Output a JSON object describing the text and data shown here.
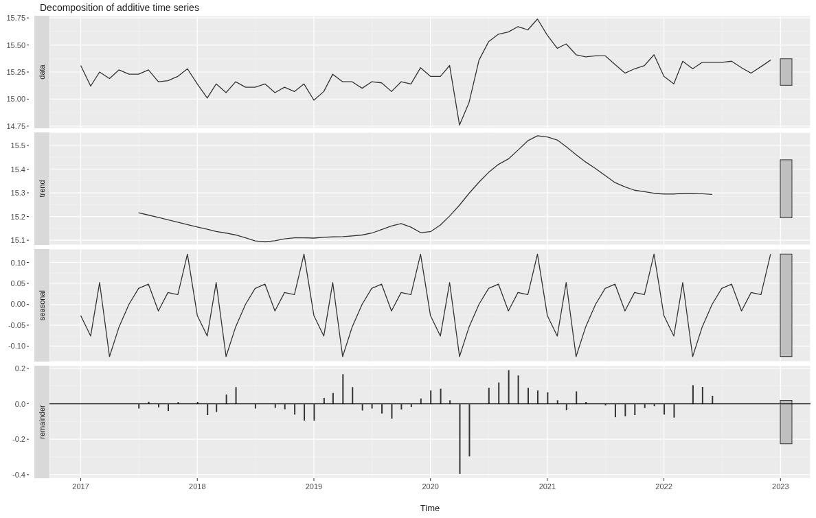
{
  "chart_data": [
    {
      "type": "line",
      "title": "Decomposition of additive time series",
      "ylabel": "data",
      "grid": true,
      "tick_labels": "y",
      "x": [
        "2017-01",
        "2017-02",
        "2017-03",
        "2017-04",
        "2017-05",
        "2017-06",
        "2017-07",
        "2017-08",
        "2017-09",
        "2017-10",
        "2017-11",
        "2017-12",
        "2018-01",
        "2018-02",
        "2018-03",
        "2018-04",
        "2018-05",
        "2018-06",
        "2018-07",
        "2018-08",
        "2018-09",
        "2018-10",
        "2018-11",
        "2018-12",
        "2019-01",
        "2019-02",
        "2019-03",
        "2019-04",
        "2019-05",
        "2019-06",
        "2019-07",
        "2019-08",
        "2019-09",
        "2019-10",
        "2019-11",
        "2019-12",
        "2020-01",
        "2020-02",
        "2020-03",
        "2020-04",
        "2020-05",
        "2020-06",
        "2020-07",
        "2020-08",
        "2020-09",
        "2020-10",
        "2020-11",
        "2020-12",
        "2021-01",
        "2021-02",
        "2021-03",
        "2021-04",
        "2021-05",
        "2021-06",
        "2021-07",
        "2021-08",
        "2021-09",
        "2021-10",
        "2021-11",
        "2021-12",
        "2022-01",
        "2022-02",
        "2022-03",
        "2022-04",
        "2022-05",
        "2022-06",
        "2022-07",
        "2022-08",
        "2022-09",
        "2022-10",
        "2022-11",
        "2022-12"
      ],
      "series": [
        {
          "color": "#333333",
          "values": [
            15.31,
            15.12,
            15.25,
            15.19,
            15.27,
            15.23,
            15.23,
            15.27,
            15.16,
            15.17,
            15.21,
            15.28,
            15.14,
            15.01,
            15.14,
            15.06,
            15.16,
            15.11,
            15.11,
            15.14,
            15.06,
            15.11,
            15.07,
            15.14,
            14.99,
            15.07,
            15.23,
            15.16,
            15.16,
            15.1,
            15.16,
            15.15,
            15.07,
            15.16,
            15.14,
            15.29,
            15.21,
            15.21,
            15.31,
            14.76,
            14.97,
            15.36,
            15.53,
            15.6,
            15.62,
            15.67,
            15.64,
            15.74,
            15.59,
            15.47,
            15.51,
            15.41,
            15.39,
            15.4,
            15.4,
            15.32,
            15.24,
            15.28,
            15.31,
            15.41,
            15.21,
            15.14,
            15.35,
            15.28,
            15.34,
            15.34,
            15.34,
            15.35,
            15.29,
            15.24,
            15.3,
            15.36
          ]
        }
      ],
      "xlim": [
        "2016-09-25",
        "2023-04-05"
      ],
      "xticks": [
        "2017",
        "2018",
        "2019",
        "2020",
        "2021",
        "2022",
        "2023"
      ],
      "ylim": [
        14.73,
        15.77
      ],
      "yticks": [
        {
          "value": 14.75,
          "label": "14.75"
        },
        {
          "value": 15,
          "label": "15.00"
        },
        {
          "value": 15.25,
          "label": "15.25"
        },
        {
          "value": 15.5,
          "label": "15.50"
        },
        {
          "value": 15.75,
          "label": "15.75"
        }
      ]
    },
    {
      "type": "line",
      "ylabel": "trend",
      "grid": true,
      "tick_labels": "y",
      "x": [
        "2017-07",
        "2017-08",
        "2017-09",
        "2017-10",
        "2017-11",
        "2017-12",
        "2018-01",
        "2018-02",
        "2018-03",
        "2018-04",
        "2018-05",
        "2018-06",
        "2018-07",
        "2018-08",
        "2018-09",
        "2018-10",
        "2018-11",
        "2018-12",
        "2019-01",
        "2019-02",
        "2019-03",
        "2019-04",
        "2019-05",
        "2019-06",
        "2019-07",
        "2019-08",
        "2019-09",
        "2019-10",
        "2019-11",
        "2019-12",
        "2020-01",
        "2020-02",
        "2020-03",
        "2020-04",
        "2020-05",
        "2020-06",
        "2020-07",
        "2020-08",
        "2020-09",
        "2020-10",
        "2020-11",
        "2020-12",
        "2021-01",
        "2021-02",
        "2021-03",
        "2021-04",
        "2021-05",
        "2021-06",
        "2021-07",
        "2021-08",
        "2021-09",
        "2021-10",
        "2021-11",
        "2021-12",
        "2022-01",
        "2022-02",
        "2022-03",
        "2022-04",
        "2022-05",
        "2022-06"
      ],
      "series": [
        {
          "color": "#333333",
          "values": [
            15.216,
            15.206,
            15.196,
            15.186,
            15.176,
            15.166,
            15.156,
            15.146,
            15.137,
            15.13,
            15.122,
            15.11,
            15.097,
            15.093,
            15.098,
            15.106,
            15.11,
            15.11,
            15.109,
            15.112,
            15.114,
            15.115,
            15.118,
            15.122,
            15.13,
            15.145,
            15.16,
            15.17,
            15.155,
            15.132,
            15.136,
            15.164,
            15.202,
            15.248,
            15.298,
            15.345,
            15.386,
            15.42,
            15.443,
            15.48,
            15.52,
            15.541,
            15.536,
            15.523,
            15.495,
            15.461,
            15.43,
            15.402,
            15.373,
            15.343,
            15.325,
            15.311,
            15.305,
            15.298,
            15.295,
            15.295,
            15.298,
            15.298,
            15.296,
            15.293
          ]
        }
      ],
      "xlim": [
        "2016-09-25",
        "2023-04-05"
      ],
      "xticks": [
        "2017",
        "2018",
        "2019",
        "2020",
        "2021",
        "2022",
        "2023"
      ],
      "ylim": [
        15.08,
        15.555
      ],
      "yticks": [
        15.1,
        15.2,
        15.3,
        15.4,
        15.5
      ]
    },
    {
      "type": "line",
      "ylabel": "seasonal",
      "grid": true,
      "tick_labels": "y",
      "x": [
        "2017-01",
        "2017-02",
        "2017-03",
        "2017-04",
        "2017-05",
        "2017-06",
        "2017-07",
        "2017-08",
        "2017-09",
        "2017-10",
        "2017-11",
        "2017-12",
        "2018-01",
        "2018-02",
        "2018-03",
        "2018-04",
        "2018-05",
        "2018-06",
        "2018-07",
        "2018-08",
        "2018-09",
        "2018-10",
        "2018-11",
        "2018-12",
        "2019-01",
        "2019-02",
        "2019-03",
        "2019-04",
        "2019-05",
        "2019-06",
        "2019-07",
        "2019-08",
        "2019-09",
        "2019-10",
        "2019-11",
        "2019-12",
        "2020-01",
        "2020-02",
        "2020-03",
        "2020-04",
        "2020-05",
        "2020-06",
        "2020-07",
        "2020-08",
        "2020-09",
        "2020-10",
        "2020-11",
        "2020-12",
        "2021-01",
        "2021-02",
        "2021-03",
        "2021-04",
        "2021-05",
        "2021-06",
        "2021-07",
        "2021-08",
        "2021-09",
        "2021-10",
        "2021-11",
        "2021-12",
        "2022-01",
        "2022-02",
        "2022-03",
        "2022-04",
        "2022-05",
        "2022-06",
        "2022-07",
        "2022-08",
        "2022-09",
        "2022-10",
        "2022-11",
        "2022-12"
      ],
      "series": [
        {
          "color": "#333333",
          "values": [
            -0.027,
            -0.076,
            0.052,
            -0.125,
            -0.054,
            0.0,
            0.038,
            0.048,
            -0.016,
            0.028,
            0.023,
            0.12,
            -0.027,
            -0.076,
            0.052,
            -0.125,
            -0.054,
            0.0,
            0.038,
            0.048,
            -0.016,
            0.028,
            0.023,
            0.12,
            -0.027,
            -0.076,
            0.052,
            -0.125,
            -0.054,
            0.0,
            0.038,
            0.048,
            -0.016,
            0.028,
            0.023,
            0.12,
            -0.027,
            -0.076,
            0.052,
            -0.125,
            -0.054,
            0.0,
            0.038,
            0.048,
            -0.016,
            0.028,
            0.023,
            0.12,
            -0.027,
            -0.076,
            0.052,
            -0.125,
            -0.054,
            0.0,
            0.038,
            0.048,
            -0.016,
            0.028,
            0.023,
            0.12,
            -0.027,
            -0.076,
            0.052,
            -0.125,
            -0.054,
            0.0,
            0.038,
            0.048,
            -0.016,
            0.028,
            0.023,
            0.12
          ]
        }
      ],
      "xlim": [
        "2016-09-25",
        "2023-04-05"
      ],
      "xticks": [
        "2017",
        "2018",
        "2019",
        "2020",
        "2021",
        "2022",
        "2023"
      ],
      "ylim": [
        -0.137,
        0.132
      ],
      "yticks": [
        {
          "value": -0.1,
          "label": "-0.10"
        },
        {
          "value": -0.05,
          "label": "-0.05"
        },
        {
          "value": 0,
          "label": "0.00"
        },
        {
          "value": 0.05,
          "label": "0.05"
        },
        {
          "value": 0.1,
          "label": "0.10"
        }
      ]
    },
    {
      "type": "bar",
      "ylabel": "remainder",
      "xlabel": "Time",
      "grid": true,
      "x": [
        "2017-07",
        "2017-08",
        "2017-09",
        "2017-10",
        "2017-11",
        "2017-12",
        "2018-01",
        "2018-02",
        "2018-03",
        "2018-04",
        "2018-05",
        "2018-06",
        "2018-07",
        "2018-08",
        "2018-09",
        "2018-10",
        "2018-11",
        "2018-12",
        "2019-01",
        "2019-02",
        "2019-03",
        "2019-04",
        "2019-05",
        "2019-06",
        "2019-07",
        "2019-08",
        "2019-09",
        "2019-10",
        "2019-11",
        "2019-12",
        "2020-01",
        "2020-02",
        "2020-03",
        "2020-04",
        "2020-05",
        "2020-06",
        "2020-07",
        "2020-08",
        "2020-09",
        "2020-10",
        "2020-11",
        "2020-12",
        "2021-01",
        "2021-02",
        "2021-03",
        "2021-04",
        "2021-05",
        "2021-06",
        "2021-07",
        "2021-08",
        "2021-09",
        "2021-10",
        "2021-11",
        "2021-12",
        "2022-01",
        "2022-02",
        "2022-03",
        "2022-04",
        "2022-05",
        "2022-06"
      ],
      "series": [
        {
          "color": "#333333",
          "values": [
            -0.027,
            0.011,
            -0.02,
            -0.041,
            0.009,
            0.0,
            0.01,
            -0.064,
            -0.046,
            0.052,
            0.094,
            0.0,
            -0.027,
            0.002,
            -0.023,
            -0.031,
            -0.061,
            -0.095,
            -0.095,
            0.033,
            0.061,
            0.167,
            0.094,
            -0.038,
            -0.027,
            -0.055,
            -0.084,
            -0.032,
            -0.018,
            0.03,
            0.075,
            0.085,
            0.02,
            -0.396,
            -0.297,
            0.0,
            0.09,
            0.12,
            0.19,
            0.16,
            0.09,
            0.075,
            0.065,
            0.02,
            -0.037,
            0.07,
            0.01,
            0.0,
            -0.009,
            -0.076,
            -0.07,
            -0.064,
            -0.024,
            -0.014,
            -0.061,
            -0.078,
            0.0,
            0.105,
            0.095,
            0.045
          ]
        }
      ],
      "ref_lines": [
        {
          "axis": "y",
          "value": 0,
          "color": "#000000"
        }
      ],
      "xlim": [
        "2016-09-25",
        "2023-04-05"
      ],
      "xticks": [
        "2017",
        "2018",
        "2019",
        "2020",
        "2021",
        "2022",
        "2023"
      ],
      "ylim": [
        -0.42,
        0.215
      ],
      "yticks": [
        {
          "value": -0.4,
          "label": "-0.4"
        },
        {
          "value": -0.2,
          "label": "-0.2"
        },
        {
          "value": 0,
          "label": "0.0"
        },
        {
          "value": 0.2,
          "label": "0.2"
        }
      ]
    }
  ]
}
